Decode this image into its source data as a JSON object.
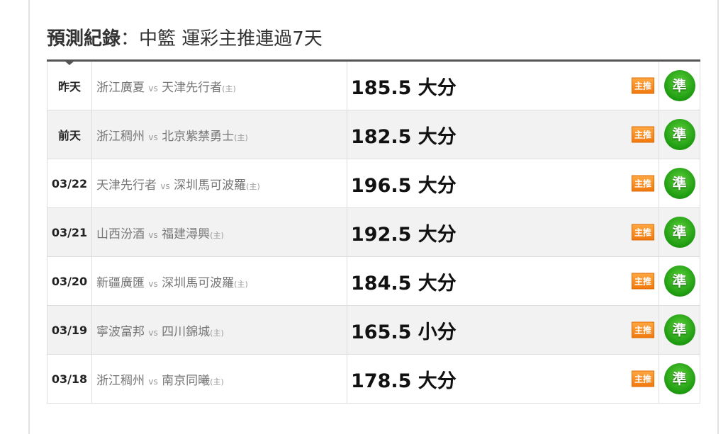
{
  "title": {
    "bold": "預測紀錄",
    "rest": "：中籃 運彩主推連過7天"
  },
  "vs": "vs",
  "home_mark": "(主)",
  "badge": "主推",
  "result": "準",
  "rows": [
    {
      "date": "昨天",
      "away": "浙江廣夏",
      "home": "天津先行者",
      "pick": "185.5 大分"
    },
    {
      "date": "前天",
      "away": "浙江稠州",
      "home": "北京紫禁勇士",
      "pick": "182.5 大分"
    },
    {
      "date": "03/22",
      "away": "天津先行者",
      "home": "深圳馬可波羅",
      "pick": "196.5 大分"
    },
    {
      "date": "03/21",
      "away": "山西汾酒",
      "home": "福建潯興",
      "pick": "192.5 大分"
    },
    {
      "date": "03/20",
      "away": "新疆廣匯",
      "home": "深圳馬可波羅",
      "pick": "184.5 大分"
    },
    {
      "date": "03/19",
      "away": "寧波富邦",
      "home": "四川錦城",
      "pick": "165.5 小分"
    },
    {
      "date": "03/18",
      "away": "浙江稠州",
      "home": "南京同曦",
      "pick": "178.5 大分"
    }
  ]
}
